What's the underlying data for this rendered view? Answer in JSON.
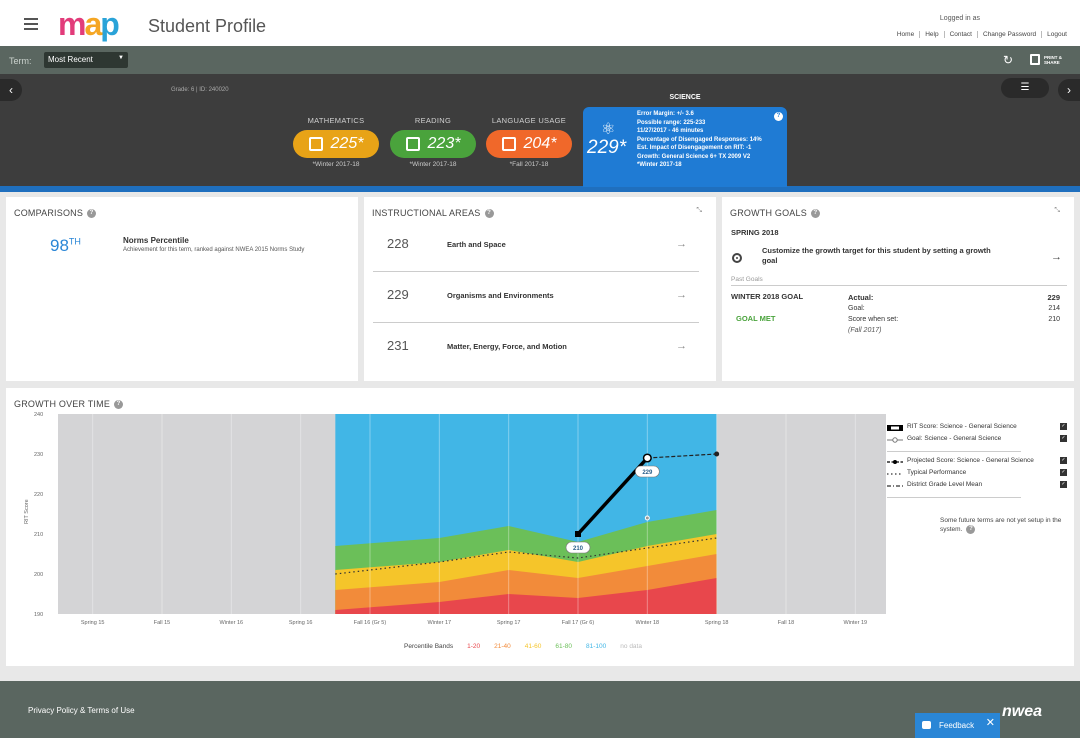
{
  "header": {
    "logo": [
      "m",
      "a",
      "p"
    ],
    "title": "Student Profile",
    "logged_in": "Logged in as",
    "links": [
      "Home",
      "Help",
      "Contact",
      "Change Password",
      "Logout"
    ]
  },
  "termbar": {
    "label": "Term:",
    "selected": "Most Recent",
    "print_label": "PRINT & SHARE"
  },
  "profile": {
    "grade_id": "Grade: 6  |  ID: 240020",
    "subjects": [
      {
        "name": "MATHEMATICS",
        "score": "225*",
        "term": "*Winter 2017-18",
        "color": "#e8a317"
      },
      {
        "name": "READING",
        "score": "223*",
        "term": "*Winter 2017-18",
        "color": "#4aa33c"
      },
      {
        "name": "LANGUAGE USAGE",
        "score": "204*",
        "term": "*Fall 2017-18",
        "color": "#f0682a"
      }
    ],
    "science": {
      "title": "SCIENCE",
      "score": "229*",
      "details": [
        "Error Margin: +/- 3.6",
        "Possible range: 225-233",
        "11/27/2017 - 46 minutes",
        "Percentage of Disengaged Responses: 14%",
        "Est. Impact of Disengagement on RIT: -1",
        "Growth: General Science 6+ TX 2009 V2",
        "*Winter 2017-18"
      ],
      "color": "#1f7bd4"
    }
  },
  "comparisons": {
    "title": "COMPARISONS",
    "value": "98",
    "suffix": "TH",
    "name": "Norms Percentile",
    "desc": "Achievement for this term, ranked against NWEA 2015 Norms Study"
  },
  "instructional": {
    "title": "INSTRUCTIONAL AREAS",
    "rows": [
      {
        "score": "228",
        "name": "Earth and Space"
      },
      {
        "score": "229",
        "name": "Organisms and Environments"
      },
      {
        "score": "231",
        "name": "Matter, Energy, Force, and Motion"
      }
    ]
  },
  "growth_goals": {
    "title": "GROWTH GOALS",
    "season": "SPRING 2018",
    "customize": "Customize the growth target for this student by setting a growth goal",
    "past": "Past Goals",
    "goal_label": "WINTER 2018 GOAL",
    "met": "GOAL MET",
    "actual_label": "Actual:",
    "goal_row_label": "Goal:",
    "score_set_label": "Score when set:",
    "score_set_term": "(Fall 2017)",
    "actual": "229",
    "goal": "214",
    "score_set": "210"
  },
  "growth": {
    "title": "GROWTH OVER TIME",
    "legend": [
      {
        "label": "RIT Score: Science - General Science",
        "style": "bar"
      },
      {
        "label": "Goal: Science - General Science",
        "style": "goal"
      },
      {
        "label": "Projected Score: Science - General Science",
        "style": "projected"
      },
      {
        "label": "Typical Performance",
        "style": "dotted"
      },
      {
        "label": "District Grade Level Mean",
        "style": "dashdot"
      }
    ],
    "note": "Some future terms are not yet setup in the system.",
    "bands_label": "Percentile Bands",
    "bands": [
      {
        "label": "1-20",
        "color": "#e8474c"
      },
      {
        "label": "21-40",
        "color": "#f28b3a"
      },
      {
        "label": "41-60",
        "color": "#f5c52a"
      },
      {
        "label": "61-80",
        "color": "#6bbf59"
      },
      {
        "label": "81-100",
        "color": "#41b6e6"
      },
      {
        "label": "no data",
        "color": "#bbbbbb"
      }
    ]
  },
  "chart_data": {
    "type": "line",
    "ylabel": "RIT Score",
    "ylim": [
      190,
      240
    ],
    "yticks": [
      190,
      200,
      210,
      220,
      230,
      240
    ],
    "categories": [
      "Spring 15",
      "Fall 15",
      "Winter 16",
      "Spring 16",
      "Fall 16 (Gr 5)",
      "Winter 17",
      "Spring 17",
      "Fall 17 (Gr 6)",
      "Winter 18",
      "Spring 18",
      "Fall 18",
      "Winter 19"
    ],
    "data_start_index": 4,
    "data_end_index": 9,
    "band_boundaries": [
      {
        "name": "p20",
        "values": [
          191,
          193,
          195,
          194,
          196,
          199
        ]
      },
      {
        "name": "p40",
        "values": [
          196,
          198,
          201,
          199,
          202,
          205
        ]
      },
      {
        "name": "p60",
        "values": [
          201,
          203,
          206,
          203,
          207,
          210
        ]
      },
      {
        "name": "p80",
        "values": [
          207,
          209,
          212,
          208,
          213,
          216
        ]
      },
      {
        "name": "p100",
        "values": [
          240,
          240,
          240,
          240,
          240,
          240
        ]
      }
    ],
    "rit_score": [
      {
        "x": "Fall 17 (Gr 6)",
        "y": 210
      },
      {
        "x": "Winter 18",
        "y": 229
      }
    ],
    "rit_labels": [
      "210",
      "229"
    ],
    "projected": [
      {
        "x": "Winter 18",
        "y": 229
      },
      {
        "x": "Spring 18",
        "y": 230
      }
    ],
    "goal": [
      {
        "x": "Winter 18",
        "y": 214
      }
    ],
    "typical": [
      {
        "x": "Fall 16 (Gr 5)",
        "y": 200
      },
      {
        "x": "Winter 17",
        "y": 203
      },
      {
        "x": "Spring 17",
        "y": 205.5
      },
      {
        "x": "Fall 17 (Gr 6)",
        "y": 204
      },
      {
        "x": "Winter 18",
        "y": 206.5
      },
      {
        "x": "Spring 18",
        "y": 209
      }
    ]
  }
}
